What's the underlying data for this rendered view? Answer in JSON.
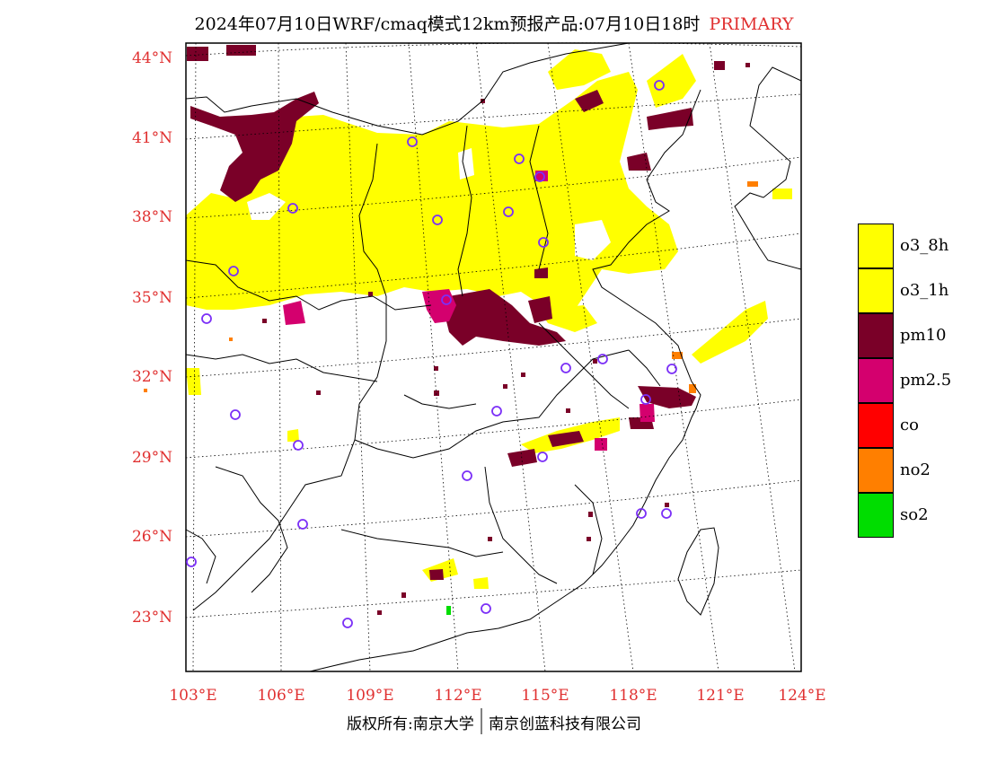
{
  "title": {
    "main": "2024年07月10日WRF/cmaq模式12km预报产品:07月10日18时",
    "tag": "PRIMARY"
  },
  "axes": {
    "lat_labels": [
      "44°N",
      "41°N",
      "38°N",
      "35°N",
      "32°N",
      "29°N",
      "26°N",
      "23°N"
    ],
    "lon_labels": [
      "103°E",
      "106°E",
      "109°E",
      "112°E",
      "115°E",
      "118°E",
      "121°E",
      "124°E"
    ]
  },
  "legend": [
    {
      "label": "o3_8h",
      "color": "#ffff00"
    },
    {
      "label": "o3_1h",
      "color": "#ffff00"
    },
    {
      "label": "pm10",
      "color": "#7a0028"
    },
    {
      "label": "pm2.5",
      "color": "#d4006e"
    },
    {
      "label": "co",
      "color": "#ff0000"
    },
    {
      "label": "no2",
      "color": "#ff7f00"
    },
    {
      "label": "so2",
      "color": "#00dd00"
    }
  ],
  "colors": {
    "o3": "#ffff00",
    "pm10": "#7a0028",
    "pm25": "#d4006e",
    "no2": "#ff7f00",
    "so2": "#00dd00",
    "station": "#7b2ff7",
    "axis_label": "#e03030"
  },
  "copyright": {
    "left": "版权所有:南京大学",
    "right": "南京创蓝科技有限公司"
  }
}
